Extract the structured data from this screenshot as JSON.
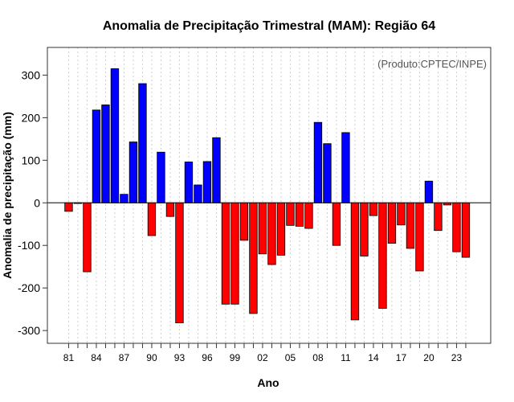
{
  "chart_data": {
    "type": "bar",
    "title": "Anomalia de Precipitação Trimestral (MAM): Região 64",
    "xlabel": "Ano",
    "ylabel": "Anomalia de precipitação (mm)",
    "credit": "(Produto:CPTEC/INPE)",
    "ylim": [
      -330,
      365
    ],
    "yticks": [
      -300,
      -200,
      -100,
      0,
      100,
      200,
      300
    ],
    "grid": true,
    "positive_color": "#0000ff",
    "negative_color": "#ff0000",
    "categories": [
      "1981",
      "1982",
      "1983",
      "1984",
      "1985",
      "1986",
      "1987",
      "1988",
      "1989",
      "1990",
      "1991",
      "1992",
      "1993",
      "1994",
      "1995",
      "1996",
      "1997",
      "1998",
      "1999",
      "2000",
      "2001",
      "2002",
      "2003",
      "2004",
      "2005",
      "2006",
      "2007",
      "2008",
      "2009",
      "2010",
      "2011",
      "2012",
      "2013",
      "2014",
      "2015",
      "2016",
      "2017",
      "2018",
      "2019",
      "2020",
      "2021",
      "2022",
      "2023",
      "2024"
    ],
    "values": [
      -20,
      0,
      -162,
      218,
      230,
      315,
      20,
      143,
      280,
      -77,
      119,
      -32,
      -282,
      96,
      42,
      97,
      153,
      -238,
      -238,
      -88,
      -260,
      -120,
      -145,
      -123,
      -53,
      -55,
      -60,
      189,
      139,
      -100,
      165,
      -275,
      -125,
      -30,
      -248,
      -95,
      -52,
      -107,
      -160,
      51,
      -65,
      -5,
      -115,
      -128
    ],
    "xtick_labels": [
      {
        "index": 0,
        "label": "81"
      },
      {
        "index": 3,
        "label": "84"
      },
      {
        "index": 6,
        "label": "87"
      },
      {
        "index": 9,
        "label": "90"
      },
      {
        "index": 12,
        "label": "93"
      },
      {
        "index": 15,
        "label": "96"
      },
      {
        "index": 18,
        "label": "99"
      },
      {
        "index": 21,
        "label": "02"
      },
      {
        "index": 24,
        "label": "05"
      },
      {
        "index": 27,
        "label": "08"
      },
      {
        "index": 30,
        "label": "11"
      },
      {
        "index": 33,
        "label": "14"
      },
      {
        "index": 36,
        "label": "17"
      },
      {
        "index": 39,
        "label": "20"
      },
      {
        "index": 42,
        "label": "23"
      }
    ]
  }
}
